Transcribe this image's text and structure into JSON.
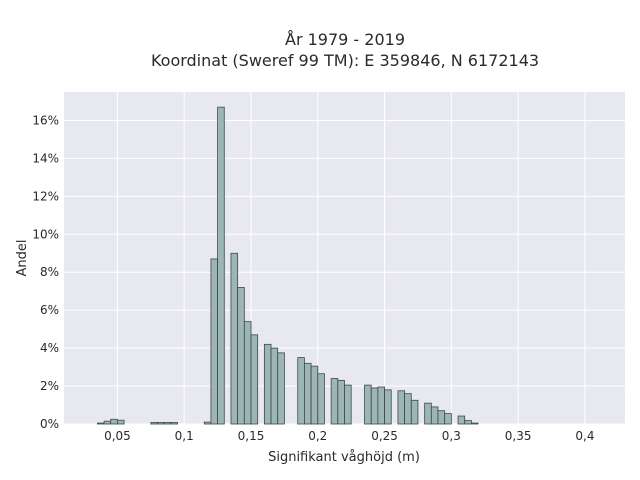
{
  "chart_data": {
    "type": "bar",
    "title": "År 1979 - 2019",
    "subtitle": "Koordinat (Sweref 99 TM): E 359846, N 6172143",
    "xlabel": "Signifikant våghöjd (m)",
    "ylabel": "Andel",
    "xlim": [
      0.01,
      0.43
    ],
    "ylim": [
      0,
      17.5
    ],
    "bin_width": 0.005,
    "x_ticks": [
      {
        "value": 0.05,
        "label": "0,05"
      },
      {
        "value": 0.1,
        "label": "0,1"
      },
      {
        "value": 0.15,
        "label": "0,15"
      },
      {
        "value": 0.2,
        "label": "0,2"
      },
      {
        "value": 0.25,
        "label": "0,25"
      },
      {
        "value": 0.3,
        "label": "0,3"
      },
      {
        "value": 0.35,
        "label": "0,35"
      },
      {
        "value": 0.4,
        "label": "0,4"
      }
    ],
    "y_ticks": [
      {
        "value": 0,
        "label": "0%"
      },
      {
        "value": 2,
        "label": "2%"
      },
      {
        "value": 4,
        "label": "4%"
      },
      {
        "value": 6,
        "label": "6%"
      },
      {
        "value": 8,
        "label": "8%"
      },
      {
        "value": 10,
        "label": "10%"
      },
      {
        "value": 12,
        "label": "12%"
      },
      {
        "value": 14,
        "label": "14%"
      },
      {
        "value": 16,
        "label": "16%"
      }
    ],
    "grid": true,
    "colors": {
      "bar_fill": "#9db5b5",
      "bar_edge": "#3a4a4a",
      "plot_bg": "#e8e9f0",
      "grid": "#ffffff"
    },
    "bins": [
      {
        "x": 0.035,
        "y": 0.05
      },
      {
        "x": 0.04,
        "y": 0.15
      },
      {
        "x": 0.045,
        "y": 0.25
      },
      {
        "x": 0.05,
        "y": 0.2
      },
      {
        "x": 0.075,
        "y": 0.08
      },
      {
        "x": 0.08,
        "y": 0.08
      },
      {
        "x": 0.085,
        "y": 0.08
      },
      {
        "x": 0.09,
        "y": 0.08
      },
      {
        "x": 0.115,
        "y": 0.1
      },
      {
        "x": 0.12,
        "y": 8.7
      },
      {
        "x": 0.125,
        "y": 16.7
      },
      {
        "x": 0.135,
        "y": 9.0
      },
      {
        "x": 0.14,
        "y": 7.2
      },
      {
        "x": 0.145,
        "y": 5.4
      },
      {
        "x": 0.15,
        "y": 4.7
      },
      {
        "x": 0.16,
        "y": 4.2
      },
      {
        "x": 0.165,
        "y": 4.0
      },
      {
        "x": 0.17,
        "y": 3.75
      },
      {
        "x": 0.185,
        "y": 3.5
      },
      {
        "x": 0.19,
        "y": 3.2
      },
      {
        "x": 0.195,
        "y": 3.05
      },
      {
        "x": 0.2,
        "y": 2.65
      },
      {
        "x": 0.21,
        "y": 2.4
      },
      {
        "x": 0.215,
        "y": 2.3
      },
      {
        "x": 0.22,
        "y": 2.05
      },
      {
        "x": 0.235,
        "y": 2.05
      },
      {
        "x": 0.24,
        "y": 1.9
      },
      {
        "x": 0.245,
        "y": 1.95
      },
      {
        "x": 0.25,
        "y": 1.8
      },
      {
        "x": 0.26,
        "y": 1.75
      },
      {
        "x": 0.265,
        "y": 1.6
      },
      {
        "x": 0.27,
        "y": 1.25
      },
      {
        "x": 0.28,
        "y": 1.1
      },
      {
        "x": 0.285,
        "y": 0.9
      },
      {
        "x": 0.29,
        "y": 0.7
      },
      {
        "x": 0.295,
        "y": 0.55
      },
      {
        "x": 0.305,
        "y": 0.42
      },
      {
        "x": 0.31,
        "y": 0.18
      },
      {
        "x": 0.315,
        "y": 0.05
      }
    ]
  }
}
